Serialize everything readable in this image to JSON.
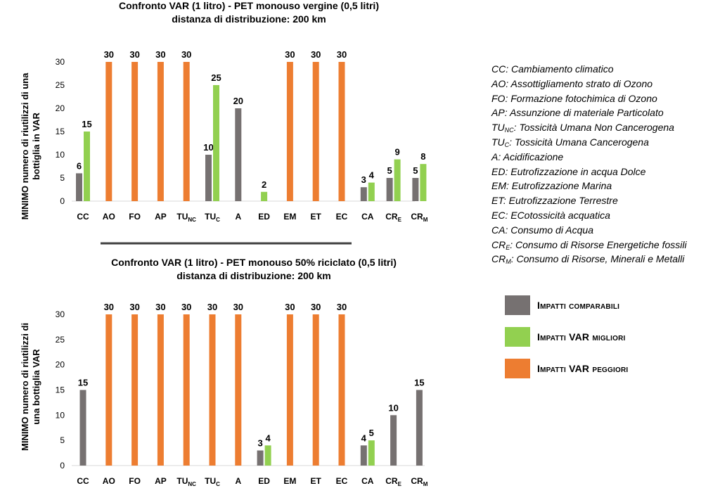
{
  "colors": {
    "comparable": "#767171",
    "better": "#92d050",
    "worse": "#ed7d31",
    "axis": "#d9d9d9",
    "separator": "#404040"
  },
  "chart_data": [
    {
      "type": "bar",
      "title": "Confronto VAR (1 litro) - PET monouso vergine (0,5 litri)",
      "subtitle": "distanza di distribuzione: 200 km",
      "ylabel": [
        "MINIMO numero di riutilizzi di una",
        "bottiglia in VAR"
      ],
      "xlabel": "",
      "ylim": [
        0,
        30
      ],
      "yticks": [
        0,
        5,
        10,
        15,
        20,
        25,
        30
      ],
      "grid": false,
      "categories": [
        {
          "main": "CC",
          "sub": ""
        },
        {
          "main": "AO",
          "sub": ""
        },
        {
          "main": "FO",
          "sub": ""
        },
        {
          "main": "AP",
          "sub": ""
        },
        {
          "main": "TU",
          "sub": "NC"
        },
        {
          "main": "TU",
          "sub": "C"
        },
        {
          "main": "A",
          "sub": ""
        },
        {
          "main": "ED",
          "sub": ""
        },
        {
          "main": "EM",
          "sub": ""
        },
        {
          "main": "ET",
          "sub": ""
        },
        {
          "main": "EC",
          "sub": ""
        },
        {
          "main": "CA",
          "sub": ""
        },
        {
          "main": "CR",
          "sub": "E"
        },
        {
          "main": "CR",
          "sub": "M"
        }
      ],
      "series": [
        {
          "name": "Impatti comparabili",
          "color": "#767171",
          "values": [
            6,
            null,
            null,
            null,
            null,
            10,
            20,
            null,
            null,
            null,
            null,
            3,
            5,
            5
          ]
        },
        {
          "name": "Impatti VAR migliori",
          "color": "#92d050",
          "values": [
            15,
            null,
            null,
            null,
            null,
            25,
            null,
            2,
            null,
            null,
            null,
            4,
            9,
            8
          ]
        },
        {
          "name": "Impatti VAR peggiori",
          "color": "#ed7d31",
          "values": [
            null,
            30,
            30,
            30,
            30,
            null,
            null,
            null,
            30,
            30,
            30,
            null,
            null,
            null
          ]
        }
      ]
    },
    {
      "type": "bar",
      "title": "Confronto VAR (1 litro) - PET monouso 50% riciclato (0,5 litri)",
      "subtitle": "distanza di distribuzione: 200 km",
      "ylabel": [
        "MINIMO numero di riutilizzi di",
        "una bottiglia VAR"
      ],
      "xlabel": "",
      "ylim": [
        0,
        30
      ],
      "yticks": [
        0,
        5,
        10,
        15,
        20,
        25,
        30
      ],
      "grid": false,
      "categories": [
        {
          "main": "CC",
          "sub": ""
        },
        {
          "main": "AO",
          "sub": ""
        },
        {
          "main": "FO",
          "sub": ""
        },
        {
          "main": "AP",
          "sub": ""
        },
        {
          "main": "TU",
          "sub": "NC"
        },
        {
          "main": "TU",
          "sub": "C"
        },
        {
          "main": "A",
          "sub": ""
        },
        {
          "main": "ED",
          "sub": ""
        },
        {
          "main": "EM",
          "sub": ""
        },
        {
          "main": "ET",
          "sub": ""
        },
        {
          "main": "EC",
          "sub": ""
        },
        {
          "main": "CA",
          "sub": ""
        },
        {
          "main": "CR",
          "sub": "E"
        },
        {
          "main": "CR",
          "sub": "M"
        }
      ],
      "series": [
        {
          "name": "Impatti comparabili",
          "color": "#767171",
          "values": [
            15,
            null,
            null,
            null,
            null,
            null,
            null,
            3,
            null,
            null,
            null,
            4,
            10,
            15
          ]
        },
        {
          "name": "Impatti VAR migliori",
          "color": "#92d050",
          "values": [
            null,
            null,
            null,
            null,
            null,
            null,
            null,
            4,
            null,
            null,
            null,
            5,
            null,
            null
          ]
        },
        {
          "name": "Impatti VAR peggiori",
          "color": "#ed7d31",
          "values": [
            null,
            30,
            30,
            30,
            30,
            30,
            30,
            null,
            30,
            30,
            30,
            null,
            null,
            null
          ]
        }
      ]
    }
  ],
  "glossary": [
    {
      "abbr": "CC",
      "sub": "",
      "text": ": Cambiamento climatico"
    },
    {
      "abbr": "AO",
      "sub": "",
      "text": ": Assottigliamento strato di Ozono"
    },
    {
      "abbr": "FO",
      "sub": "",
      "text": ": Formazione fotochimica di Ozono"
    },
    {
      "abbr": "AP",
      "sub": "",
      "text": ": Assunzione di materiale Particolato"
    },
    {
      "abbr": "TU",
      "sub": "NC",
      "text": ": Tossicità Umana Non Cancerogena"
    },
    {
      "abbr": "TU",
      "sub": "C",
      "text": ": Tossicità Umana Cancerogena"
    },
    {
      "abbr": "A",
      "sub": "",
      "text": ": Acidificazione"
    },
    {
      "abbr": "ED",
      "sub": "",
      "text": ": Eutrofizzazione in acqua Dolce"
    },
    {
      "abbr": "EM",
      "sub": "",
      "text": ": Eutrofizzazione Marina"
    },
    {
      "abbr": "ET",
      "sub": "",
      "text": ": Eutrofizzazione Terrestre"
    },
    {
      "abbr": "EC",
      "sub": "",
      "text": ": ECotossicità acquatica"
    },
    {
      "abbr": "CA",
      "sub": "",
      "text": ": Consumo di Acqua"
    },
    {
      "abbr": "CR",
      "sub": "E",
      "text": ": Consumo di Risorse Energetiche fossili"
    },
    {
      "abbr": "CR",
      "sub": "M",
      "text": ": Consumo di Risorse, Minerali e Metalli"
    }
  ],
  "legend": [
    {
      "label": "Impatti comparabili",
      "color": "#767171"
    },
    {
      "label": "Impatti VAR migliori",
      "color": "#92d050"
    },
    {
      "label": "Impatti VAR peggiori",
      "color": "#ed7d31"
    }
  ]
}
